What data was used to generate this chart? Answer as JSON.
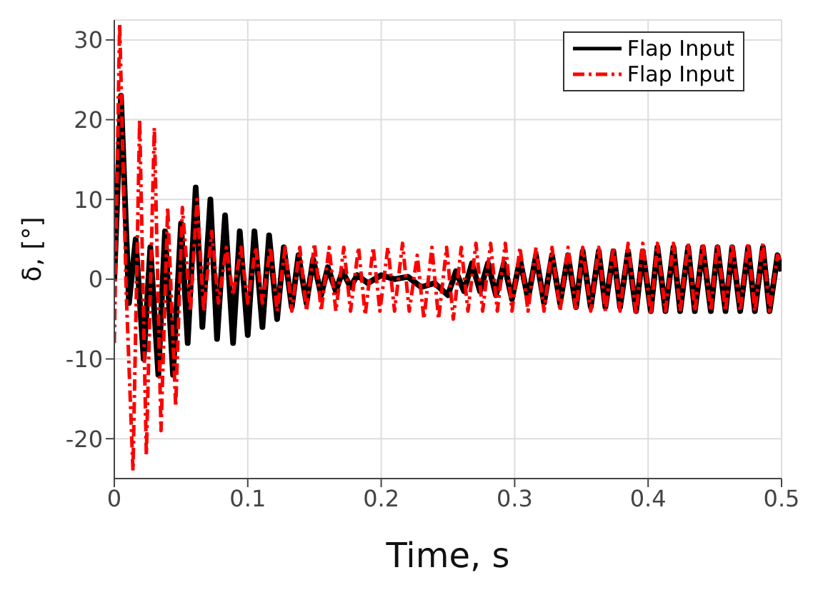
{
  "chart_data": {
    "type": "line",
    "xlabel": "Time, s",
    "ylabel": "δ, [°]",
    "xlim": [
      0,
      0.5
    ],
    "xticks": [
      0,
      0.1,
      0.2,
      0.3,
      0.4,
      0.5
    ],
    "ylim": [
      -25,
      32.5
    ],
    "yticks": [
      -20,
      -10,
      0,
      10,
      20,
      30
    ],
    "grid": true,
    "legend": "top right",
    "marker": "none",
    "series": [
      {
        "name": "Flap Input",
        "color": "#000000",
        "line_style": "solid",
        "x": [
          0,
          0.005,
          0.011,
          0.016,
          0.022,
          0.027,
          0.033,
          0.038,
          0.044,
          0.05,
          0.055,
          0.061,
          0.066,
          0.072,
          0.077,
          0.083,
          0.089,
          0.094,
          0.1,
          0.105,
          0.111,
          0.116,
          0.122,
          0.127,
          0.133,
          0.138,
          0.144,
          0.149,
          0.155,
          0.16,
          0.166,
          0.171,
          0.177,
          0.182,
          0.19,
          0.2,
          0.21,
          0.22,
          0.23,
          0.24,
          0.25,
          0.256,
          0.262,
          0.268,
          0.274,
          0.28,
          0.286,
          0.292,
          0.298,
          0.304,
          0.31,
          0.316,
          0.322,
          0.328,
          0.334,
          0.34,
          0.346,
          0.351,
          0.357,
          0.363,
          0.368,
          0.374,
          0.379,
          0.385,
          0.391,
          0.396,
          0.402,
          0.407,
          0.413,
          0.419,
          0.424,
          0.43,
          0.435,
          0.441,
          0.447,
          0.452,
          0.458,
          0.463,
          0.469,
          0.475,
          0.48,
          0.486,
          0.491,
          0.497,
          0.5
        ],
        "values": [
          0,
          23,
          -3,
          5,
          -10,
          4,
          -12,
          6,
          -12,
          7,
          -8,
          11.5,
          -6,
          10,
          -7.5,
          8,
          -8,
          6,
          -7,
          6,
          -6,
          5.5,
          -5,
          4,
          -3.5,
          3,
          -3,
          2.5,
          -2,
          1.5,
          -1.5,
          1,
          -1,
          0.5,
          -0.5,
          0.5,
          0,
          0.3,
          -1,
          -0.5,
          -2,
          1,
          -1.5,
          2,
          -1.5,
          2,
          -2,
          2,
          -2.5,
          2.5,
          -2.5,
          3,
          -3,
          3,
          -3,
          3,
          -3.5,
          3.5,
          -3.5,
          3.5,
          -3.5,
          3.5,
          -3.5,
          3.5,
          -4,
          3.5,
          -4,
          4,
          -4,
          4,
          -4,
          4,
          -4,
          4,
          -4,
          4,
          -4,
          4,
          -4,
          4,
          -4,
          4,
          -4,
          3,
          1
        ]
      },
      {
        "name": "Flap Input",
        "color": "#ff0000",
        "line_style": "dashed",
        "x": [
          0,
          0.004,
          0.009,
          0.014,
          0.019,
          0.024,
          0.03,
          0.035,
          0.04,
          0.046,
          0.051,
          0.057,
          0.062,
          0.067,
          0.073,
          0.078,
          0.084,
          0.089,
          0.095,
          0.1,
          0.106,
          0.111,
          0.117,
          0.122,
          0.128,
          0.133,
          0.139,
          0.144,
          0.15,
          0.155,
          0.161,
          0.166,
          0.172,
          0.177,
          0.183,
          0.188,
          0.194,
          0.199,
          0.205,
          0.21,
          0.216,
          0.221,
          0.227,
          0.232,
          0.238,
          0.243,
          0.249,
          0.254,
          0.26,
          0.265,
          0.271,
          0.276,
          0.282,
          0.287,
          0.293,
          0.298,
          0.304,
          0.31,
          0.316,
          0.322,
          0.328,
          0.334,
          0.34,
          0.346,
          0.351,
          0.357,
          0.363,
          0.368,
          0.374,
          0.379,
          0.385,
          0.391,
          0.396,
          0.402,
          0.407,
          0.413,
          0.419,
          0.424,
          0.43,
          0.435,
          0.441,
          0.447,
          0.452,
          0.458,
          0.463,
          0.469,
          0.475,
          0.48,
          0.486,
          0.491,
          0.497,
          0.5
        ],
        "values": [
          -8,
          32,
          -2,
          -24,
          20,
          -22,
          19,
          -19,
          9,
          -16,
          9,
          -4,
          10,
          -4,
          6,
          -3,
          4,
          -2,
          4,
          -3,
          4,
          -3,
          4,
          -4,
          4,
          -4,
          4,
          -4,
          4.5,
          -4,
          4,
          -4,
          4,
          -4,
          4,
          -4.5,
          4,
          -4,
          4,
          -4,
          4.5,
          -4,
          3,
          -5,
          4,
          -5,
          4,
          -5,
          4,
          -4,
          4.5,
          -4,
          4.5,
          -4,
          4.5,
          -4,
          4,
          -4,
          4,
          -4,
          4,
          -4,
          4,
          -4,
          4,
          -4,
          4,
          -4,
          4,
          -4,
          4.5,
          -4.5,
          4.5,
          -4.5,
          4.5,
          -4,
          4.5,
          -4,
          4.5,
          -4,
          4.5,
          -4,
          4.5,
          -4,
          4.5,
          -4,
          4.5,
          -4,
          4.5,
          -4,
          3,
          2
        ]
      }
    ]
  }
}
